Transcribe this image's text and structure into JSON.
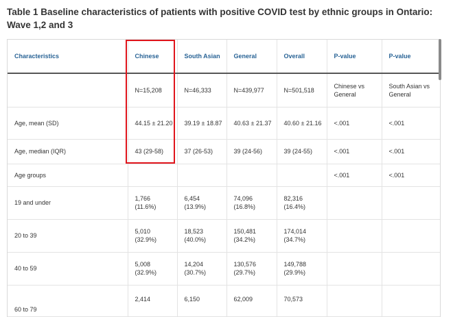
{
  "caption": "Table 1  Baseline characteristics of patients with positive COVID test by ethnic groups in Ontario: Wave 1,2 and 3",
  "headers": [
    "Characteristics",
    "Chinese",
    "South Asian",
    "General",
    "Overall",
    "P-value",
    "P-value"
  ],
  "rows": [
    [
      "",
      "N=15,208",
      "N=46,333",
      "N=439,977",
      "N=501,518",
      "Chinese vs General",
      "South Asian vs General"
    ],
    [
      "Age, mean (SD)",
      "44.15 ± 21.20",
      "39.19 ± 18.87",
      "40.63 ± 21.37",
      "40.60 ± 21.16",
      "<.001",
      "<.001"
    ],
    [
      "Age, median (IQR)",
      "43 (29-58)",
      "37 (26-53)",
      "39 (24-56)",
      "39 (24-55)",
      "<.001",
      "<.001"
    ],
    [
      "Age groups",
      "",
      "",
      "",
      "",
      "<.001",
      "<.001"
    ],
    [
      "19 and under",
      "1,766 (11.6%)",
      "6,454 (13.9%)",
      "74,096 (16.8%)",
      "82,316 (16.4%)",
      "",
      ""
    ],
    [
      "20 to 39",
      "5,010 (32.9%)",
      "18,523 (40.0%)",
      "150,481 (34.2%)",
      "174,014 (34.7%)",
      "",
      ""
    ],
    [
      "40 to 59",
      "5,008 (32.9%)",
      "14,204 (30.7%)",
      "130,576 (29.7%)",
      "149,788 (29.9%)",
      "",
      ""
    ],
    [
      "60 to 79",
      "2,414",
      "6,150",
      "62,009",
      "70,573",
      "",
      ""
    ]
  ],
  "colors": {
    "header_text": "#2a6496",
    "highlight": "#e0141b"
  }
}
